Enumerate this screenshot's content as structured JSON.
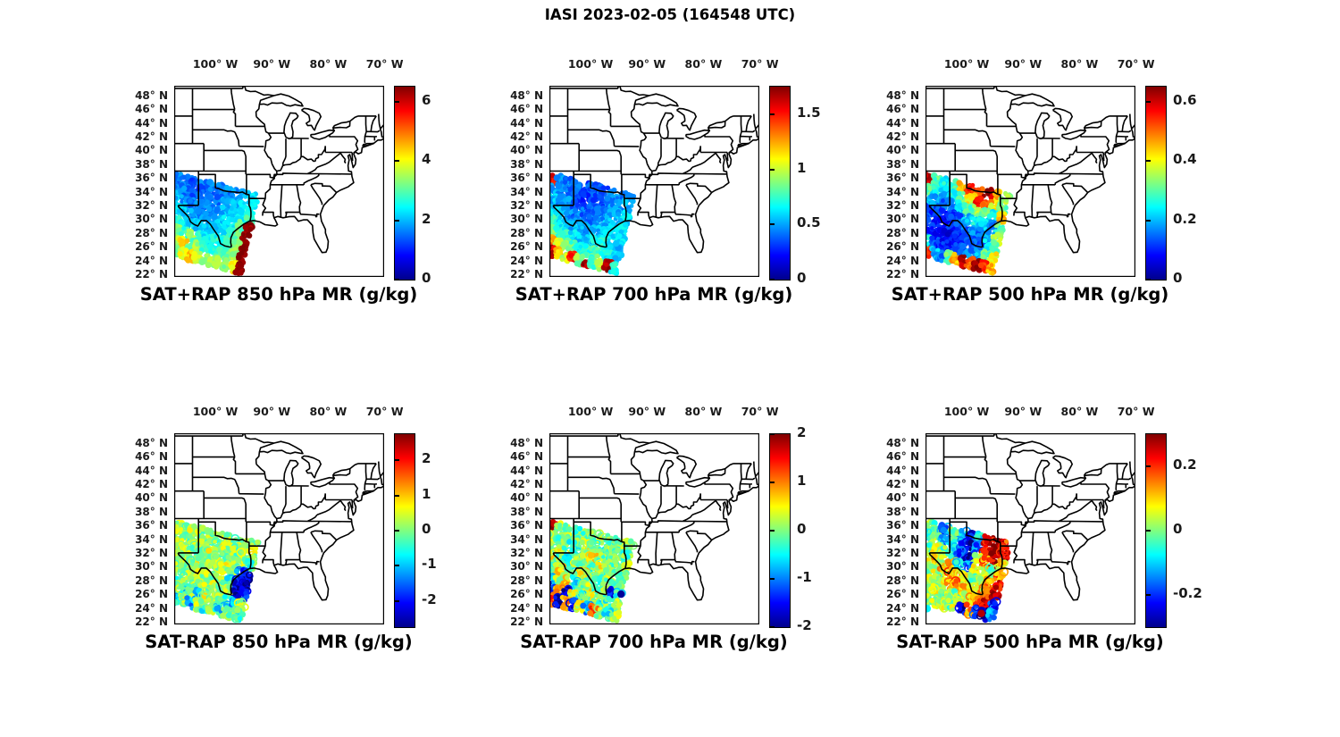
{
  "chart_data": {
    "type": "map-scatter",
    "figure_title": "IASI 2023-02-05 (164548 UTC)",
    "projection": {
      "lon_range": [
        -107.3,
        -70.1
      ],
      "lat_range": [
        21.6,
        49.4
      ],
      "region": "central and eastern United States with state boundaries"
    },
    "lon_ticks": [
      {
        "lon": -100,
        "label": "100° W"
      },
      {
        "lon": -90,
        "label": "90° W"
      },
      {
        "lon": -80,
        "label": "80° W"
      },
      {
        "lon": -70,
        "label": "70° W"
      }
    ],
    "lat_ticks": [
      {
        "lat": 48,
        "label": "48° N"
      },
      {
        "lat": 46,
        "label": "46° N"
      },
      {
        "lat": 44,
        "label": "44° N"
      },
      {
        "lat": 42,
        "label": "42° N"
      },
      {
        "lat": 40,
        "label": "40° N"
      },
      {
        "lat": 38,
        "label": "38° N"
      },
      {
        "lat": 36,
        "label": "36° N"
      },
      {
        "lat": 34,
        "label": "34° N"
      },
      {
        "lat": 32,
        "label": "32° N"
      },
      {
        "lat": 30,
        "label": "30° N"
      },
      {
        "lat": 28,
        "label": "28° N"
      },
      {
        "lat": 26,
        "label": "26° N"
      },
      {
        "lat": 24,
        "label": "24° N"
      },
      {
        "lat": 22,
        "label": "22° N"
      }
    ],
    "colormap": "jet",
    "swath_corners": {
      "tl": [
        -107.6,
        36.8
      ],
      "tr": [
        -92.2,
        33.6
      ],
      "br": [
        -95.3,
        22.0
      ],
      "bl": [
        -107.6,
        24.6
      ]
    },
    "panels": [
      {
        "title": "SAT+RAP 850 hPa MR (g/kg)",
        "row": 0,
        "col": 0,
        "colorbar": {
          "vmin": 0,
          "vmax": 6.5,
          "ticks": [
            0,
            2,
            4,
            6
          ],
          "tick_labels": [
            "0",
            "2",
            "4",
            "6"
          ]
        },
        "jitter": 0.1,
        "values_grid": [
          [
            1.6,
            1.5,
            1.4,
            1.5,
            1.6,
            1.5,
            1.7,
            1.8,
            2.0,
            2.3
          ],
          [
            1.8,
            1.6,
            1.4,
            1.4,
            1.5,
            1.6,
            1.8,
            2.0,
            2.2,
            2.5
          ],
          [
            2.0,
            1.8,
            1.6,
            1.5,
            1.6,
            1.8,
            2.0,
            2.2,
            2.5,
            2.9
          ],
          [
            2.2,
            2.0,
            1.8,
            1.7,
            1.8,
            2.0,
            2.2,
            2.4,
            3.0,
            6.45
          ],
          [
            2.6,
            2.4,
            2.2,
            2.0,
            2.1,
            2.2,
            2.4,
            2.7,
            3.1,
            6.45
          ],
          [
            3.2,
            2.8,
            3.4,
            2.6,
            2.4,
            2.5,
            2.7,
            2.9,
            3.3,
            6.45
          ],
          [
            3.6,
            4.3,
            3.0,
            3.5,
            2.8,
            2.7,
            2.9,
            3.1,
            3.5,
            6.45
          ],
          [
            3.1,
            3.9,
            4.5,
            3.7,
            3.3,
            3.5,
            3.7,
            3.3,
            4.0,
            6.45
          ]
        ],
        "extra_points": []
      },
      {
        "title": "SAT+RAP 700 hPa MR (g/kg)",
        "row": 0,
        "col": 1,
        "colorbar": {
          "vmin": 0,
          "vmax": 1.75,
          "ticks": [
            0,
            0.5,
            1,
            1.5
          ],
          "tick_labels": [
            "0",
            "0.5",
            "1",
            "1.5"
          ]
        },
        "jitter": 0.12,
        "values_grid": [
          [
            1.55,
            0.45,
            0.4,
            0.38,
            0.36,
            0.35,
            0.38,
            0.42,
            0.46,
            0.5
          ],
          [
            0.5,
            0.42,
            0.38,
            0.35,
            0.33,
            0.35,
            0.4,
            0.45,
            0.5,
            0.55
          ],
          [
            0.55,
            0.5,
            0.45,
            0.4,
            0.38,
            0.4,
            0.45,
            0.5,
            0.55,
            0.6
          ],
          [
            0.62,
            0.55,
            0.5,
            0.45,
            0.42,
            0.45,
            0.5,
            0.55,
            0.6,
            0.65
          ],
          [
            0.72,
            0.65,
            0.6,
            0.52,
            0.48,
            0.5,
            0.55,
            0.6,
            0.65,
            0.6
          ],
          [
            0.92,
            0.8,
            0.7,
            0.6,
            0.55,
            0.6,
            0.65,
            0.7,
            0.6,
            0.55
          ],
          [
            1.3,
            1.0,
            0.9,
            0.8,
            0.7,
            0.75,
            0.8,
            0.7,
            0.65,
            0.6
          ],
          [
            1.6,
            1.2,
            1.0,
            1.55,
            0.9,
            1.65,
            0.8,
            0.95,
            1.7,
            0.7
          ]
        ],
        "extra_points": []
      },
      {
        "title": "SAT+RAP 500 hPa MR (g/kg)",
        "row": 0,
        "col": 2,
        "colorbar": {
          "vmin": 0,
          "vmax": 0.65,
          "ticks": [
            0,
            0.2,
            0.4,
            0.6
          ],
          "tick_labels": [
            "0",
            "0.2",
            "0.4",
            "0.6"
          ]
        },
        "jitter": 0.12,
        "values_grid": [
          [
            0.6,
            0.3,
            0.25,
            0.3,
            0.45,
            0.55,
            0.5,
            0.62,
            0.45,
            0.35
          ],
          [
            0.3,
            0.25,
            0.2,
            0.25,
            0.3,
            0.4,
            0.55,
            0.5,
            0.4,
            0.3
          ],
          [
            0.2,
            0.18,
            0.15,
            0.18,
            0.22,
            0.3,
            0.35,
            0.3,
            0.25,
            0.45
          ],
          [
            0.15,
            0.12,
            0.1,
            0.12,
            0.15,
            0.2,
            0.25,
            0.22,
            0.18,
            0.3
          ],
          [
            0.12,
            0.1,
            0.08,
            0.1,
            0.12,
            0.15,
            0.18,
            0.15,
            0.2,
            0.35
          ],
          [
            0.1,
            0.09,
            0.08,
            0.08,
            0.1,
            0.12,
            0.14,
            0.12,
            0.25,
            0.3
          ],
          [
            0.25,
            0.12,
            0.1,
            0.1,
            0.12,
            0.14,
            0.16,
            0.2,
            0.3,
            0.4
          ],
          [
            0.55,
            0.2,
            0.15,
            0.3,
            0.45,
            0.62,
            0.5,
            0.63,
            0.55,
            0.45
          ]
        ],
        "extra_points": []
      },
      {
        "title": "SAT-RAP 850 hPa MR (g/kg)",
        "row": 1,
        "col": 0,
        "colorbar": {
          "vmin": -2.75,
          "vmax": 2.75,
          "ticks": [
            -2,
            -1,
            0,
            1,
            2
          ],
          "tick_labels": [
            "-2",
            "-1",
            "0",
            "1",
            "2"
          ]
        },
        "jitter": 0.22,
        "values_grid": [
          [
            0.2,
            0.1,
            0.2,
            0.1,
            0.2,
            0.1,
            0.2,
            0.1,
            0.3,
            0.2
          ],
          [
            0.3,
            0.2,
            0.1,
            0.2,
            0.1,
            0.3,
            0.2,
            0.1,
            0.2,
            0.3
          ],
          [
            0.2,
            0.3,
            0.1,
            0.2,
            0.3,
            0.2,
            0.1,
            0.3,
            0.2,
            -0.4
          ],
          [
            0.3,
            0.2,
            0.2,
            0.3,
            0.1,
            0.2,
            0.3,
            0.2,
            -1.6,
            -2.4
          ],
          [
            0.2,
            0.1,
            0.3,
            0.2,
            0.2,
            0.1,
            0.2,
            -0.5,
            -2.5,
            -2.3
          ],
          [
            -0.3,
            0.2,
            0.1,
            0.3,
            0.2,
            0.2,
            0.1,
            0.2,
            -2.4,
            -1.8
          ],
          [
            0.1,
            -0.6,
            0.2,
            -0.8,
            0.3,
            0.1,
            0.2,
            -0.6,
            -1.0,
            0.2
          ],
          [
            -0.8,
            0.2,
            -1.2,
            0.1,
            -0.5,
            0.3,
            -0.8,
            0.2,
            0.1,
            -0.3
          ]
        ],
        "extra_points": []
      },
      {
        "title": "SAT-RAP 700 hPa MR (g/kg)",
        "row": 1,
        "col": 1,
        "colorbar": {
          "vmin": -2,
          "vmax": 2,
          "ticks": [
            -2,
            -1,
            0,
            1,
            2
          ],
          "tick_labels": [
            "-2",
            "-1",
            "0",
            "1",
            "2"
          ]
        },
        "jitter": 0.22,
        "values_grid": [
          [
            1.9,
            0.1,
            0.0,
            -0.1,
            0.0,
            0.1,
            0.0,
            -0.1,
            0.0,
            0.1
          ],
          [
            0.2,
            0.0,
            -0.2,
            0.0,
            0.3,
            0.0,
            -0.2,
            0.0,
            0.1,
            -0.1
          ],
          [
            0.0,
            0.3,
            0.0,
            -0.2,
            0.0,
            0.4,
            0.0,
            -0.2,
            0.0,
            0.1
          ],
          [
            0.4,
            0.0,
            -0.3,
            0.2,
            0.0,
            -0.2,
            0.3,
            0.0,
            -0.1,
            0.0
          ],
          [
            0.0,
            0.5,
            0.0,
            -0.3,
            0.4,
            0.0,
            -0.2,
            0.1,
            0.0,
            -0.2
          ],
          [
            -0.6,
            0.0,
            0.6,
            -0.4,
            0.0,
            0.3,
            -0.2,
            0.0,
            -1.6,
            -0.3
          ],
          [
            -1.5,
            0.8,
            -1.7,
            0.5,
            -0.4,
            0.0,
            0.3,
            -0.3,
            0.0,
            0.2
          ],
          [
            1.3,
            -1.8,
            0.9,
            -1.5,
            0.4,
            -0.8,
            1.1,
            0.0,
            -0.4,
            0.1
          ]
        ],
        "extra_points": [
          {
            "lon": -94.6,
            "lat": 26.0,
            "value": -1.9
          }
        ]
      },
      {
        "title": "SAT-RAP 500 hPa MR (g/kg)",
        "row": 1,
        "col": 2,
        "colorbar": {
          "vmin": -0.3,
          "vmax": 0.3,
          "ticks": [
            -0.2,
            0,
            0.2
          ],
          "tick_labels": [
            "-0.2",
            "0",
            "0.2"
          ]
        },
        "jitter": 0.22,
        "values_grid": [
          [
            0.0,
            -0.05,
            -0.15,
            0.0,
            -0.12,
            -0.22,
            -0.1,
            0.25,
            0.28,
            0.2
          ],
          [
            -0.05,
            0.0,
            -0.1,
            -0.05,
            -0.18,
            -0.26,
            -0.15,
            0.2,
            0.28,
            0.25
          ],
          [
            0.0,
            0.05,
            0.0,
            -0.05,
            -0.2,
            -0.25,
            0.05,
            0.15,
            0.25,
            0.1
          ],
          [
            0.05,
            0.1,
            0.05,
            0.1,
            -0.1,
            -0.15,
            0.1,
            0.05,
            0.0,
            0.15
          ],
          [
            0.0,
            0.05,
            0.1,
            0.15,
            0.1,
            0.05,
            0.0,
            0.05,
            0.15,
            0.22
          ],
          [
            0.05,
            0.0,
            0.05,
            0.1,
            0.15,
            0.1,
            0.05,
            0.1,
            0.2,
            0.26
          ],
          [
            -0.02,
            0.05,
            0.0,
            0.05,
            0.0,
            0.05,
            0.1,
            0.15,
            0.25,
            -0.2
          ],
          [
            0.0,
            0.02,
            0.05,
            0.0,
            0.08,
            -0.25,
            0.15,
            -0.22,
            -0.28,
            -0.15
          ]
        ],
        "extra_points": [
          {
            "lon": -107.0,
            "lat": 23.9,
            "value": -0.08
          },
          {
            "lon": -97.4,
            "lat": 23.2,
            "value": 0.27
          }
        ]
      }
    ]
  }
}
